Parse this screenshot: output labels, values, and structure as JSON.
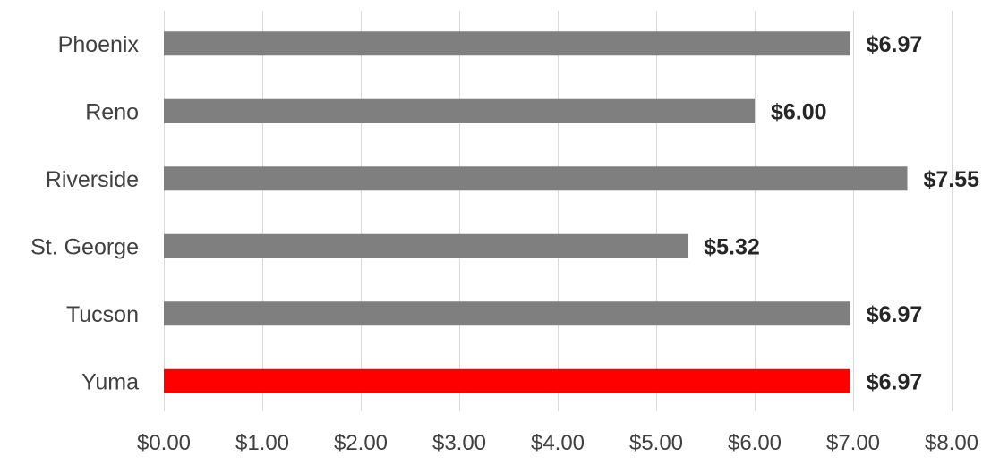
{
  "chart_data": {
    "type": "bar",
    "orientation": "horizontal",
    "categories": [
      "Phoenix",
      "Reno",
      "Riverside",
      "St. George",
      "Tucson",
      "Yuma"
    ],
    "values": [
      6.97,
      6.0,
      7.55,
      5.32,
      6.97,
      6.97
    ],
    "data_labels": [
      "$6.97",
      "$6.00",
      "$7.55",
      "$5.32",
      "$6.97",
      "$6.97"
    ],
    "x_ticks": [
      "$0.00",
      "$1.00",
      "$2.00",
      "$3.00",
      "$4.00",
      "$5.00",
      "$6.00",
      "$7.00",
      "$8.00"
    ],
    "xlim": [
      0,
      8
    ],
    "grid": true,
    "legend": "none",
    "colors": {
      "default_bar": "#7f7f7f",
      "highlight_bar": "#ff0000",
      "highlight_category": "Yuma"
    }
  }
}
